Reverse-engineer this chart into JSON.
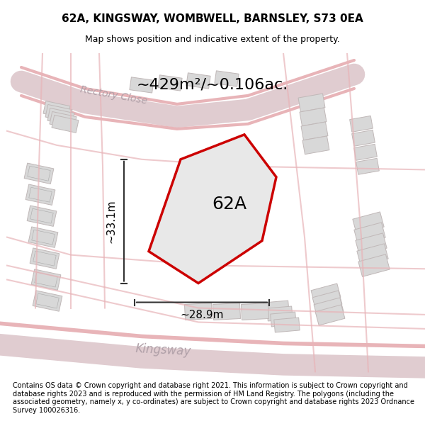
{
  "title": "62A, KINGSWAY, WOMBWELL, BARNSLEY, S73 0EA",
  "subtitle": "Map shows position and indicative extent of the property.",
  "area_label": "~429m²/~0.106ac.",
  "plot_label": "62A",
  "dim_horizontal": "~28.9m",
  "dim_vertical": "~33.1m",
  "footer": "Contains OS data © Crown copyright and database right 2021. This information is subject to Crown copyright and database rights 2023 and is reproduced with the permission of HM Land Registry. The polygons (including the associated geometry, namely x, y co-ordinates) are subject to Crown copyright and database rights 2023 Ordnance Survey 100026316.",
  "bg_color": "#f5f5f5",
  "map_bg": "#f0eeee",
  "plot_fill": "#dcdcdc",
  "plot_edge": "#cc0000",
  "road_color": "#e8b4b8",
  "building_color": "#d8d8d8",
  "building_edge": "#c0b8b8",
  "street_label_color": "#b0a0a8",
  "title_fontsize": 11,
  "subtitle_fontsize": 9,
  "area_fontsize": 16,
  "plot_label_fontsize": 18,
  "dim_fontsize": 11,
  "footer_fontsize": 7
}
